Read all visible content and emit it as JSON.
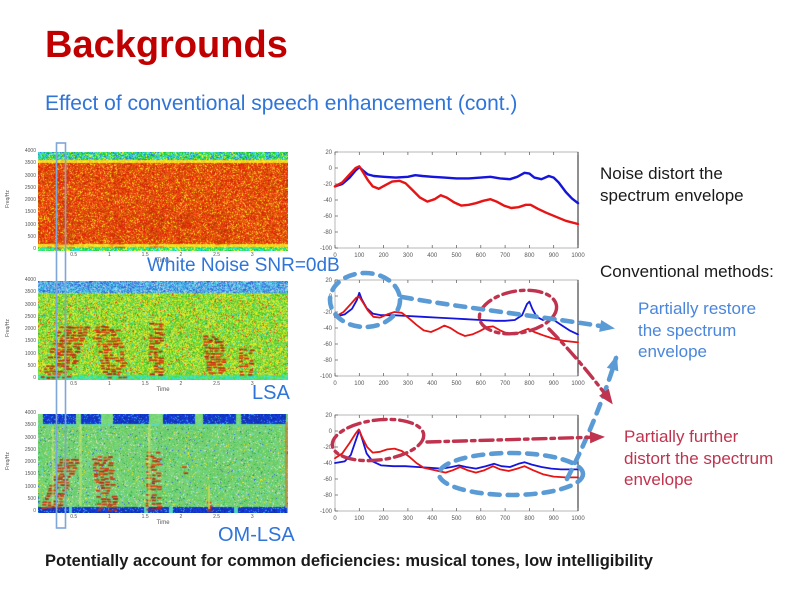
{
  "slide": {
    "title": "Backgrounds",
    "subtitle": "Effect of conventional speech enhancement (cont.)",
    "footer": "Potentially account for common deficiencies: musical tones, low intelligibility"
  },
  "annotations": {
    "noise_distort": "Noise distort the\nspectrum envelope",
    "conventional_methods": "Conventional methods:",
    "partially_restore": "Partially restore\nthe spectrum\nenvelope",
    "partially_distort": "Partially further\ndistort the spectrum\nenvelope"
  },
  "colors": {
    "title_red": "#C00000",
    "heading_blue": "#2E74D9",
    "annotation_blue": "#4A86DB",
    "annotation_red": "#C0334E",
    "dash_blue": "#5B9BD5",
    "dash_red": "#C0334E",
    "line_blue": "#1414DC",
    "line_red": "#E61414",
    "selection_box": "#7DA7D9",
    "text_black": "#1A1A1A"
  },
  "spec_axis": {
    "ylabel": "Freq/Hz",
    "xlabel": "Time",
    "y_ticks": [
      "4000",
      "3500",
      "3000",
      "2500",
      "2000",
      "1500",
      "1000",
      "500",
      "0"
    ],
    "x_ticks": [
      0.5,
      1,
      1.5,
      2,
      2.5,
      3
    ],
    "t_max": 3.5
  },
  "spectrograms": [
    {
      "label": "White Noise SNR=0dB",
      "palette": "hot-noise"
    },
    {
      "label": "LSA",
      "palette": "lsa"
    },
    {
      "label": "OM-LSA",
      "palette": "omlsa"
    }
  ],
  "chart_data": [
    {
      "type": "line",
      "panel": "white-noise",
      "title": "",
      "xlabel": "",
      "ylabel": "",
      "grid": false,
      "legend": "none",
      "xlim": [
        0,
        1000
      ],
      "ylim": [
        -100,
        20
      ],
      "x_ticks": [
        0,
        100,
        200,
        300,
        400,
        500,
        600,
        700,
        800,
        900,
        1000
      ],
      "y_ticks": [
        20,
        0,
        -20,
        -40,
        -60,
        -80,
        -100
      ],
      "line_width": 2.4,
      "series": [
        {
          "name": "blue-envelope",
          "color": "#1414DC",
          "points": [
            [
              0,
              -23
            ],
            [
              30,
              -20
            ],
            [
              60,
              -12
            ],
            [
              85,
              -3
            ],
            [
              100,
              1
            ],
            [
              115,
              -3
            ],
            [
              135,
              -8
            ],
            [
              160,
              -10
            ],
            [
              200,
              -11
            ],
            [
              250,
              -12
            ],
            [
              300,
              -11
            ],
            [
              330,
              -9
            ],
            [
              360,
              -10
            ],
            [
              400,
              -11
            ],
            [
              450,
              -12
            ],
            [
              500,
              -13
            ],
            [
              550,
              -13
            ],
            [
              600,
              -12
            ],
            [
              640,
              -11
            ],
            [
              680,
              -13
            ],
            [
              720,
              -14
            ],
            [
              750,
              -11
            ],
            [
              780,
              -6
            ],
            [
              800,
              -7
            ],
            [
              820,
              -12
            ],
            [
              850,
              -14
            ],
            [
              880,
              -10
            ],
            [
              900,
              -12
            ],
            [
              920,
              -18
            ],
            [
              950,
              -30
            ],
            [
              975,
              -38
            ],
            [
              1000,
              -44
            ]
          ]
        },
        {
          "name": "red-envelope",
          "color": "#E61414",
          "points": [
            [
              0,
              -23
            ],
            [
              30,
              -18
            ],
            [
              60,
              -8
            ],
            [
              85,
              0
            ],
            [
              100,
              2
            ],
            [
              115,
              -5
            ],
            [
              135,
              -15
            ],
            [
              155,
              -23
            ],
            [
              180,
              -26
            ],
            [
              210,
              -21
            ],
            [
              235,
              -17
            ],
            [
              265,
              -16
            ],
            [
              290,
              -19
            ],
            [
              320,
              -28
            ],
            [
              350,
              -37
            ],
            [
              380,
              -42
            ],
            [
              410,
              -39
            ],
            [
              435,
              -34
            ],
            [
              460,
              -37
            ],
            [
              490,
              -43
            ],
            [
              520,
              -47
            ],
            [
              550,
              -46
            ],
            [
              580,
              -44
            ],
            [
              610,
              -41
            ],
            [
              640,
              -39
            ],
            [
              665,
              -42
            ],
            [
              695,
              -47
            ],
            [
              725,
              -50
            ],
            [
              755,
              -49
            ],
            [
              785,
              -46
            ],
            [
              805,
              -46
            ],
            [
              835,
              -51
            ],
            [
              870,
              -56
            ],
            [
              910,
              -61
            ],
            [
              950,
              -66
            ],
            [
              1000,
              -70
            ]
          ]
        }
      ]
    },
    {
      "type": "line",
      "panel": "lsa",
      "title": "",
      "xlabel": "",
      "ylabel": "",
      "grid": false,
      "legend": "none",
      "xlim": [
        0,
        1000
      ],
      "ylim": [
        -100,
        20
      ],
      "x_ticks": [
        0,
        100,
        200,
        300,
        400,
        500,
        600,
        700,
        800,
        900,
        1000
      ],
      "y_ticks": [
        20,
        0,
        -20,
        -40,
        -60,
        -80,
        -100
      ],
      "line_width": 1.8,
      "series": [
        {
          "name": "blue-envelope",
          "color": "#1414DC",
          "points": [
            [
              0,
              -26
            ],
            [
              40,
              -23
            ],
            [
              70,
              -16
            ],
            [
              90,
              -5
            ],
            [
              100,
              4
            ],
            [
              110,
              -4
            ],
            [
              130,
              -15
            ],
            [
              155,
              -22
            ],
            [
              190,
              -24
            ],
            [
              240,
              -24
            ],
            [
              300,
              -25
            ],
            [
              360,
              -26
            ],
            [
              420,
              -27
            ],
            [
              480,
              -28
            ],
            [
              540,
              -29
            ],
            [
              600,
              -30
            ],
            [
              660,
              -31
            ],
            [
              700,
              -31
            ],
            [
              740,
              -30
            ],
            [
              770,
              -24
            ],
            [
              790,
              -10
            ],
            [
              800,
              -7
            ],
            [
              812,
              -16
            ],
            [
              830,
              -26
            ],
            [
              855,
              -30
            ],
            [
              880,
              -27
            ],
            [
              905,
              -31
            ],
            [
              935,
              -37
            ],
            [
              965,
              -43
            ],
            [
              1000,
              -48
            ]
          ]
        },
        {
          "name": "red-envelope",
          "color": "#E61414",
          "points": [
            [
              0,
              -26
            ],
            [
              35,
              -20
            ],
            [
              65,
              -10
            ],
            [
              88,
              -2
            ],
            [
              100,
              -1
            ],
            [
              115,
              -8
            ],
            [
              135,
              -18
            ],
            [
              158,
              -26
            ],
            [
              185,
              -27
            ],
            [
              215,
              -23
            ],
            [
              245,
              -20
            ],
            [
              275,
              -21
            ],
            [
              305,
              -28
            ],
            [
              335,
              -36
            ],
            [
              365,
              -43
            ],
            [
              395,
              -45
            ],
            [
              425,
              -41
            ],
            [
              450,
              -37
            ],
            [
              475,
              -40
            ],
            [
              505,
              -46
            ],
            [
              535,
              -50
            ],
            [
              565,
              -48
            ],
            [
              595,
              -44
            ],
            [
              625,
              -39
            ],
            [
              650,
              -38
            ],
            [
              680,
              -43
            ],
            [
              710,
              -47
            ],
            [
              740,
              -48
            ],
            [
              770,
              -44
            ],
            [
              795,
              -41
            ],
            [
              820,
              -45
            ],
            [
              855,
              -49
            ],
            [
              895,
              -53
            ],
            [
              940,
              -56
            ],
            [
              1000,
              -58
            ]
          ]
        }
      ]
    },
    {
      "type": "line",
      "panel": "om-lsa",
      "title": "",
      "xlabel": "",
      "ylabel": "",
      "grid": false,
      "legend": "none",
      "xlim": [
        0,
        1000
      ],
      "ylim": [
        -100,
        20
      ],
      "x_ticks": [
        0,
        100,
        200,
        300,
        400,
        500,
        600,
        700,
        800,
        900,
        1000
      ],
      "y_ticks": [
        20,
        0,
        -20,
        -40,
        -60,
        -80,
        -100
      ],
      "line_width": 1.8,
      "series": [
        {
          "name": "blue-envelope",
          "color": "#1414DC",
          "points": [
            [
              0,
              -40
            ],
            [
              40,
              -38
            ],
            [
              65,
              -30
            ],
            [
              85,
              -12
            ],
            [
              100,
              1
            ],
            [
              112,
              -10
            ],
            [
              130,
              -28
            ],
            [
              155,
              -38
            ],
            [
              190,
              -43
            ],
            [
              240,
              -44
            ],
            [
              290,
              -44
            ],
            [
              340,
              -45
            ],
            [
              390,
              -46
            ],
            [
              440,
              -47
            ],
            [
              480,
              -45
            ],
            [
              510,
              -43
            ],
            [
              540,
              -45
            ],
            [
              580,
              -47
            ],
            [
              620,
              -44
            ],
            [
              655,
              -41
            ],
            [
              685,
              -44
            ],
            [
              720,
              -45
            ],
            [
              755,
              -41
            ],
            [
              780,
              -39
            ],
            [
              810,
              -42
            ],
            [
              850,
              -45
            ],
            [
              890,
              -47
            ],
            [
              930,
              -48
            ],
            [
              1000,
              -48
            ]
          ]
        },
        {
          "name": "red-envelope",
          "color": "#E61414",
          "points": [
            [
              0,
              -34
            ],
            [
              30,
              -28
            ],
            [
              60,
              -15
            ],
            [
              85,
              -3
            ],
            [
              98,
              2
            ],
            [
              112,
              -8
            ],
            [
              132,
              -20
            ],
            [
              155,
              -27
            ],
            [
              185,
              -26
            ],
            [
              215,
              -23
            ],
            [
              245,
              -22
            ],
            [
              275,
              -25
            ],
            [
              305,
              -32
            ],
            [
              335,
              -40
            ],
            [
              365,
              -46
            ],
            [
              395,
              -48
            ],
            [
              425,
              -50
            ],
            [
              455,
              -52
            ],
            [
              485,
              -49
            ],
            [
              515,
              -45
            ],
            [
              545,
              -49
            ],
            [
              580,
              -52
            ],
            [
              615,
              -49
            ],
            [
              650,
              -44
            ],
            [
              680,
              -48
            ],
            [
              715,
              -50
            ],
            [
              750,
              -47
            ],
            [
              780,
              -44
            ],
            [
              815,
              -49
            ],
            [
              855,
              -54
            ],
            [
              900,
              -57
            ],
            [
              950,
              -58
            ],
            [
              1000,
              -58
            ]
          ]
        }
      ]
    }
  ]
}
